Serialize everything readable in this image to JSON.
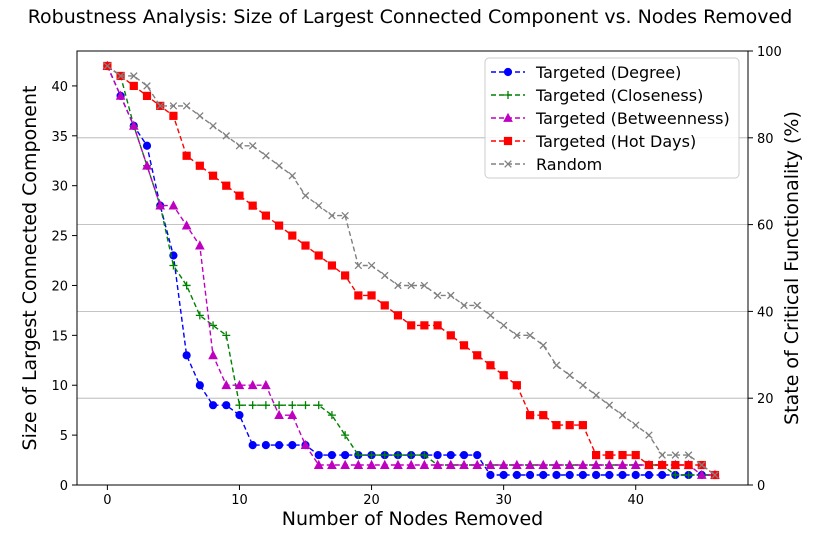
{
  "chart_data": {
    "type": "line",
    "title": "Robustness Analysis: Size of Largest Connected Component vs. Nodes Removed",
    "xlabel": "Number of Nodes Removed",
    "ylabel": "Size of Largest Connected Component",
    "y2label": "State of Critical Functionality (%)",
    "xlim": [
      -2.3,
      48.5
    ],
    "ylim": [
      0,
      43.5
    ],
    "y2lim": [
      0,
      100
    ],
    "xticks": [
      "0",
      "10",
      "20",
      "30",
      "40"
    ],
    "yticks": [
      "0",
      "5",
      "10",
      "15",
      "20",
      "25",
      "30",
      "35",
      "40"
    ],
    "y2ticks": [
      "0",
      "20",
      "40",
      "60",
      "80",
      "100"
    ],
    "grid": "horizontal lines on secondary axis",
    "legend_position": "top-right",
    "series": [
      {
        "name": "Targeted (Degree)",
        "color": "#0000ff",
        "marker": "circle",
        "x": [
          0,
          1,
          2,
          3,
          4,
          5,
          6,
          7,
          8,
          9,
          10,
          11,
          12,
          13,
          14,
          15,
          16,
          17,
          18,
          19,
          20,
          21,
          22,
          23,
          24,
          25,
          26,
          27,
          28,
          29,
          30,
          31,
          32,
          33,
          34,
          35,
          36,
          37,
          38,
          39,
          40,
          41,
          42,
          43,
          44,
          45,
          46
        ],
        "values": [
          42,
          39,
          36,
          34,
          28,
          23,
          13,
          10,
          8,
          8,
          7,
          4,
          4,
          4,
          4,
          4,
          3,
          3,
          3,
          3,
          3,
          3,
          3,
          3,
          3,
          3,
          3,
          3,
          3,
          1,
          1,
          1,
          1,
          1,
          1,
          1,
          1,
          1,
          1,
          1,
          1,
          1,
          1,
          1,
          1,
          1,
          1
        ]
      },
      {
        "name": "Targeted (Closeness)",
        "color": "#008000",
        "marker": "plus",
        "x": [
          0,
          1,
          2,
          3,
          4,
          5,
          6,
          7,
          8,
          9,
          10,
          11,
          12,
          13,
          14,
          15,
          16,
          17,
          18,
          19,
          20,
          21,
          22,
          23,
          24,
          25,
          26,
          27,
          28,
          29,
          30,
          31,
          32,
          33,
          34,
          35,
          36,
          37,
          38,
          39,
          40,
          41,
          42,
          43,
          44,
          45,
          46
        ],
        "values": [
          42,
          41,
          36,
          32,
          28,
          22,
          20,
          17,
          16,
          15,
          8,
          8,
          8,
          8,
          8,
          8,
          8,
          7,
          5,
          3,
          3,
          3,
          3,
          3,
          3,
          2,
          2,
          2,
          2,
          2,
          2,
          2,
          2,
          2,
          2,
          2,
          2,
          2,
          2,
          2,
          2,
          2,
          2,
          1,
          1,
          1,
          1
        ]
      },
      {
        "name": "Targeted (Betweenness)",
        "color": "#c000c0",
        "marker": "triangle",
        "x": [
          0,
          1,
          2,
          3,
          4,
          5,
          6,
          7,
          8,
          9,
          10,
          11,
          12,
          13,
          14,
          15,
          16,
          17,
          18,
          19,
          20,
          21,
          22,
          23,
          24,
          25,
          26,
          27,
          28,
          29,
          30,
          31,
          32,
          33,
          34,
          35,
          36,
          37,
          38,
          39,
          40,
          41,
          42,
          43,
          44,
          45,
          46
        ],
        "values": [
          42,
          39,
          36,
          32,
          28,
          28,
          26,
          24,
          13,
          10,
          10,
          10,
          10,
          7,
          7,
          4,
          2,
          2,
          2,
          2,
          2,
          2,
          2,
          2,
          2,
          2,
          2,
          2,
          2,
          2,
          2,
          2,
          2,
          2,
          2,
          2,
          2,
          2,
          2,
          2,
          2,
          2,
          2,
          2,
          2,
          1,
          1
        ]
      },
      {
        "name": "Targeted (Hot Days)",
        "color": "#ff0000",
        "marker": "square",
        "x": [
          0,
          1,
          2,
          3,
          4,
          5,
          6,
          7,
          8,
          9,
          10,
          11,
          12,
          13,
          14,
          15,
          16,
          17,
          18,
          19,
          20,
          21,
          22,
          23,
          24,
          25,
          26,
          27,
          28,
          29,
          30,
          31,
          32,
          33,
          34,
          35,
          36,
          37,
          38,
          39,
          40,
          41,
          42,
          43,
          44,
          45,
          46
        ],
        "values": [
          42,
          41,
          40,
          39,
          38,
          37,
          33,
          32,
          31,
          30,
          29,
          28,
          27,
          26,
          25,
          24,
          23,
          22,
          21,
          19,
          19,
          18,
          17,
          16,
          16,
          16,
          15,
          14,
          13,
          12,
          11,
          10,
          7,
          7,
          6,
          6,
          6,
          3,
          3,
          3,
          3,
          2,
          2,
          2,
          2,
          2,
          1
        ]
      },
      {
        "name": "Random",
        "color": "#808080",
        "marker": "x",
        "x": [
          0,
          1,
          2,
          3,
          4,
          5,
          6,
          7,
          8,
          9,
          10,
          11,
          12,
          13,
          14,
          15,
          16,
          17,
          18,
          19,
          20,
          21,
          22,
          23,
          24,
          25,
          26,
          27,
          28,
          29,
          30,
          31,
          32,
          33,
          34,
          35,
          36,
          37,
          38,
          39,
          40,
          41,
          42,
          43,
          44,
          45,
          46
        ],
        "values": [
          42,
          41,
          41,
          40,
          38,
          38,
          38,
          37,
          36,
          35,
          34,
          34,
          33,
          32,
          31,
          29,
          28,
          27,
          27,
          22,
          22,
          21,
          20,
          20,
          20,
          19,
          19,
          18,
          18,
          17,
          16,
          15,
          15,
          14,
          12,
          11,
          10,
          9,
          8,
          7,
          6,
          5,
          3,
          3,
          3,
          2,
          1
        ]
      }
    ]
  }
}
